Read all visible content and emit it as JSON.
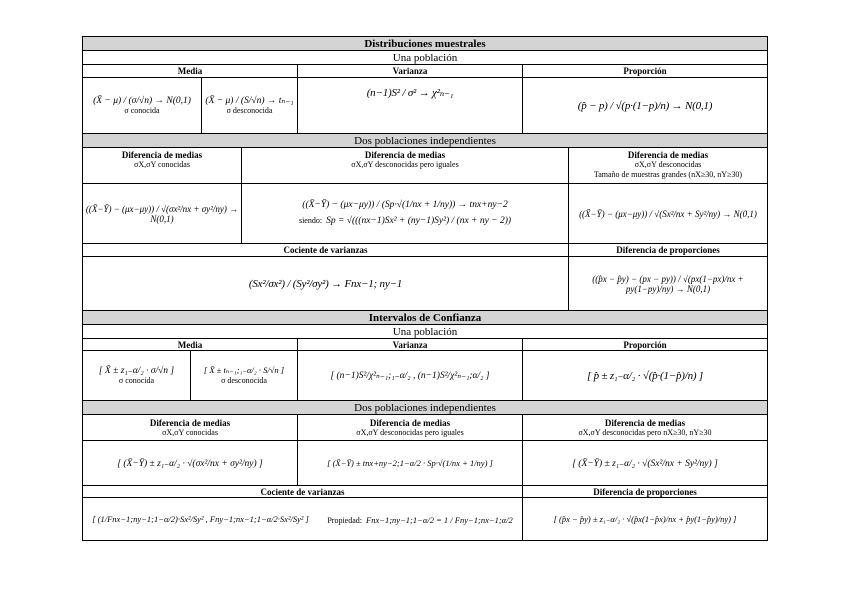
{
  "title": "Distribuciones muestrales",
  "sec1": {
    "una": "Una población",
    "media": "Media",
    "varianza": "Varianza",
    "proporcion": "Proporción",
    "f_media_known": "(X̄ − μ) / (σ/√n) → N(0,1)",
    "n_known": "σ conocida",
    "f_media_unknown": "(X̄ − μ) / (S/√n) → tₙ₋₁",
    "n_unknown": "σ desconocida",
    "f_var": "(n−1)S² / σ² → χ²ₙ₋₁",
    "f_prop": "(p̂ − p) / √(p·(1−p)/n) → N(0,1)",
    "dos": "Dos poblaciones independientes",
    "dm": "Diferencia de medias",
    "dm1_note": "σX,σY conocidas",
    "dm2_note": "σX,σY desconocidas pero iguales",
    "dm3_note": "σX,σY desconocidas",
    "dm3_note2": "Tamaño de muestras grandes (nX≥30, nY≥30)",
    "f_dm1": "((X̄−Ȳ) − (μx−μy)) / √(σx²/nx + σy²/ny) → N(0,1)",
    "f_dm2": "((X̄−Ȳ) − (μx−μy)) / (Sp·√(1/nx + 1/ny)) → tnx+ny−2",
    "siendo": "siendo:",
    "f_sp": "Sp = √(((nx−1)Sx² + (ny−1)Sy²) / (nx + ny − 2))",
    "f_dm3": "((X̄−Ȳ) − (μx−μy)) / √(Sx²/nx + Sy²/ny) → N(0,1)",
    "cv": "Cociente de varianzas",
    "dp": "Diferencia de proporciones",
    "f_cv": "(Sx²/σx²) / (Sy²/σy²) → Fnx−1; ny−1",
    "f_dp": "((p̂x − p̂y) − (px − py)) / √(px(1−px)/nx + py(1−py)/ny) → N(0,1)"
  },
  "title2": "Intervalos de Confianza",
  "sec2": {
    "una": "Una población",
    "media": "Media",
    "varianza": "Varianza",
    "proporcion": "Proporción",
    "f_media_known": "[ X̄ ± z₁₋α/₂ · σ/√n ]",
    "n_known": "σ conocida",
    "f_media_unknown": "[ X̄ ± tₙ₋₁;₁₋α/₂ · S/√n ]",
    "n_unknown": "σ desconocida",
    "f_var": "[ (n−1)S²/χ²ₙ₋₁;₁₋α/₂ , (n−1)S²/χ²ₙ₋₁;α/₂ ]",
    "f_prop": "[ p̂ ± z₁₋α/₂ · √(p̂·(1−p̂)/n) ]",
    "dos": "Dos poblaciones independientes",
    "dm": "Diferencia de medias",
    "dm1_note": "σX,σY conocidas",
    "dm2_note": "σX,σY desconocidas pero iguales",
    "dm3_note": "σX,σY desconocidas pero nX≥30, nY≥30",
    "f_dm1": "[ (X̄−Ȳ) ± z₁₋α/₂ · √(σx²/nx + σy²/ny) ]",
    "f_dm2": "[ (X̄−Ȳ) ± tnx+ny−2;1−α/2 · Sp·√(1/nx + 1/ny) ]",
    "f_dm3": "[ (X̄−Ȳ) ± z₁₋α/₂ · √(Sx²/nx + Sy²/ny) ]",
    "cv": "Cociente de varianzas",
    "dp": "Diferencia de proporciones",
    "f_cv": "[ (1/Fnx−1;ny−1;1−α/2)·Sx²/Sy² , Fny−1;nx−1;1−α/2·Sx²/Sy² ]",
    "propiedad": "Propiedad:",
    "f_prop_cv": "Fnx−1;ny−1;1−α/2 = 1 / Fny−1;nx−1;α/2",
    "f_dp": "[ (p̂x − p̂y) ± z₁₋α/₂ · √(p̂x(1−p̂x)/nx + p̂y(1−p̂y)/ny) ]"
  }
}
